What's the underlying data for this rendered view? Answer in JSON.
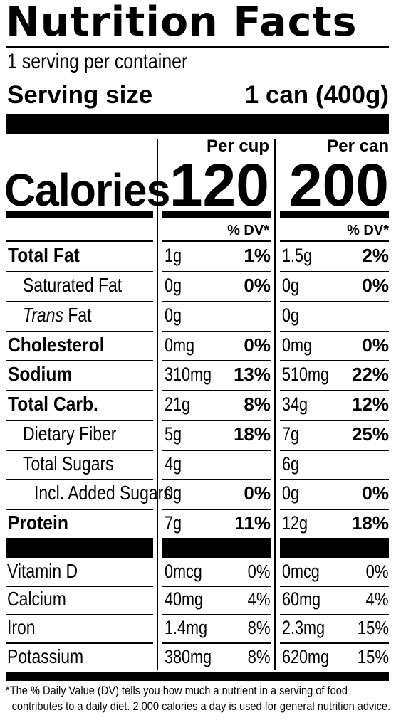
{
  "title": "Nutrition Facts",
  "servings_per_container": "1 serving per container",
  "serving_size_label": "Serving size",
  "serving_size_value": "1 can (400g)",
  "calories_label": "Calories",
  "columns": [
    {
      "header": "Per cup",
      "calories": "120",
      "dv_header": "% DV*"
    },
    {
      "header": "Per can",
      "calories": "200",
      "dv_header": "% DV*"
    }
  ],
  "nutrients": [
    {
      "label": "Total Fat",
      "style": "bold",
      "cup": {
        "amount": "1g",
        "dv": "1%"
      },
      "can": {
        "amount": "1.5g",
        "dv": "2%"
      }
    },
    {
      "label": "Saturated Fat",
      "style": "indent",
      "cup": {
        "amount": "0g",
        "dv": "0%"
      },
      "can": {
        "amount": "0g",
        "dv": "0%"
      }
    },
    {
      "label_italic": "Trans",
      "label": " Fat",
      "style": "indent",
      "cup": {
        "amount": "0g",
        "dv": ""
      },
      "can": {
        "amount": "0g",
        "dv": ""
      }
    },
    {
      "label": "Cholesterol",
      "style": "bold",
      "cup": {
        "amount": "0mg",
        "dv": "0%"
      },
      "can": {
        "amount": "0mg",
        "dv": "0%"
      }
    },
    {
      "label": "Sodium",
      "style": "bold",
      "cup": {
        "amount": "310mg",
        "dv": "13%"
      },
      "can": {
        "amount": "510mg",
        "dv": "22%"
      }
    },
    {
      "label": "Total Carb.",
      "style": "bold",
      "cup": {
        "amount": "21g",
        "dv": "8%"
      },
      "can": {
        "amount": "34g",
        "dv": "12%"
      }
    },
    {
      "label": "Dietary Fiber",
      "style": "indent",
      "cup": {
        "amount": "5g",
        "dv": "18%"
      },
      "can": {
        "amount": "7g",
        "dv": "25%"
      }
    },
    {
      "label": "Total Sugars",
      "style": "indent",
      "cup": {
        "amount": "4g",
        "dv": ""
      },
      "can": {
        "amount": "6g",
        "dv": ""
      }
    },
    {
      "label": "Incl. Added Sugars",
      "style": "indent2",
      "cup": {
        "amount": "0g",
        "dv": "0%"
      },
      "can": {
        "amount": "0g",
        "dv": "0%"
      }
    },
    {
      "label": "Protein",
      "style": "bold",
      "cup": {
        "amount": "7g",
        "dv": "11%"
      },
      "can": {
        "amount": "12g",
        "dv": "18%"
      }
    }
  ],
  "vitamins": [
    {
      "label": "Vitamin D",
      "cup": {
        "amount": "0mcg",
        "dv": "0%"
      },
      "can": {
        "amount": "0mcg",
        "dv": "0%"
      }
    },
    {
      "label": "Calcium",
      "cup": {
        "amount": "40mg",
        "dv": "4%"
      },
      "can": {
        "amount": "60mg",
        "dv": "4%"
      }
    },
    {
      "label": "Iron",
      "cup": {
        "amount": "1.4mg",
        "dv": "8%"
      },
      "can": {
        "amount": "2.3mg",
        "dv": "15%"
      }
    },
    {
      "label": "Potassium",
      "cup": {
        "amount": "380mg",
        "dv": "8%"
      },
      "can": {
        "amount": "620mg",
        "dv": "15%"
      }
    }
  ],
  "footnote_line1": "*The % Daily Value (DV) tells you how much a nutrient in a serving of food",
  "footnote_line2": "contributes to a daily diet. 2,000 calories a day is used for general nutrition advice."
}
